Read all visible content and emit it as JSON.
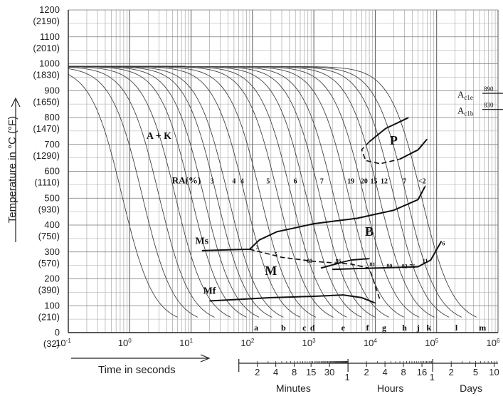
{
  "chart_data": {
    "type": "line",
    "title": "",
    "ylabel": "Temperature in °C (°F)",
    "xlabel": "Time in seconds",
    "x_scale": "log",
    "xlim": [
      0.1,
      1000000
    ],
    "ylim": [
      0,
      1200
    ],
    "grid": true,
    "y_ticks": [
      {
        "c": "0",
        "f": "(32)"
      },
      {
        "c": "100",
        "f": "(210)"
      },
      {
        "c": "200",
        "f": "(390)"
      },
      {
        "c": "300",
        "f": "(570)"
      },
      {
        "c": "400",
        "f": "(750)"
      },
      {
        "c": "500",
        "f": "(930)"
      },
      {
        "c": "600",
        "f": "(1110)"
      },
      {
        "c": "700",
        "f": "(1290)"
      },
      {
        "c": "800",
        "f": "(1470)"
      },
      {
        "c": "900",
        "f": "(1650)"
      },
      {
        "c": "1000",
        "f": "(1830)"
      },
      {
        "c": "1100",
        "f": "(2010)"
      },
      {
        "c": "1200",
        "f": "(2190)"
      }
    ],
    "x_ticks": [
      {
        "base": "10",
        "exp": "-1",
        "value": 0.1
      },
      {
        "base": "10",
        "exp": "0",
        "value": 1
      },
      {
        "base": "10",
        "exp": "1",
        "value": 10
      },
      {
        "base": "10",
        "exp": "2",
        "value": 100
      },
      {
        "base": "10",
        "exp": "3",
        "value": 1000
      },
      {
        "base": "10",
        "exp": "4",
        "value": 10000
      },
      {
        "base": "10",
        "exp": "5",
        "value": 100000
      },
      {
        "base": "10",
        "exp": "6",
        "value": 1000000
      }
    ],
    "time_scales": [
      {
        "name": "Minutes",
        "unit_seconds": 60,
        "range": [
          1,
          60
        ],
        "ticks": [
          {
            "label": "2",
            "value": 2
          },
          {
            "label": "4",
            "value": 4
          },
          {
            "label": "8",
            "value": 8
          },
          {
            "label": "15",
            "value": 15
          },
          {
            "label": "30",
            "value": 30
          }
        ],
        "start_label": ""
      },
      {
        "name": "Hours",
        "unit_seconds": 3600,
        "range": [
          1,
          24
        ],
        "ticks": [
          {
            "label": "2",
            "value": 2
          },
          {
            "label": "4",
            "value": 4
          },
          {
            "label": "8",
            "value": 8
          },
          {
            "label": "16",
            "value": 16
          }
        ],
        "start_label": "1"
      },
      {
        "name": "Days",
        "unit_seconds": 86400,
        "range": [
          1,
          11.57
        ],
        "ticks": [
          {
            "label": "2",
            "value": 2
          },
          {
            "label": "5",
            "value": 5
          },
          {
            "label": "10",
            "value": 10
          }
        ],
        "start_label": "1"
      }
    ],
    "reference_lines": [
      {
        "label": "A",
        "sub": "c1e",
        "value_label": "890",
        "y": 890,
        "x_start": 300000
      },
      {
        "label": "A",
        "sub": "c1b",
        "value_label": "830",
        "y": 830,
        "x_start": 300000
      }
    ],
    "region_labels": [
      {
        "text": "A + K",
        "x": 3,
        "y": 720
      },
      {
        "text": "P",
        "x": 20000,
        "y": 700
      },
      {
        "text": "B",
        "x": 8000,
        "y": 360
      },
      {
        "text": "M",
        "x": 200,
        "y": 215
      },
      {
        "text": "Ms",
        "x": 15,
        "y": 330
      },
      {
        "text": "Mf",
        "x": 20,
        "y": 145
      }
    ],
    "ra_label": "RA(%)",
    "ra_values": [
      {
        "text": "3",
        "x": 22,
        "y": 565
      },
      {
        "text": "4",
        "x": 50,
        "y": 565
      },
      {
        "text": "4",
        "x": 68,
        "y": 565
      },
      {
        "text": "5",
        "x": 180,
        "y": 565
      },
      {
        "text": "6",
        "x": 500,
        "y": 565
      },
      {
        "text": "7",
        "x": 1350,
        "y": 565
      },
      {
        "text": "19",
        "x": 4000,
        "y": 565
      },
      {
        "text": "20",
        "x": 6600,
        "y": 565
      },
      {
        "text": "15",
        "x": 9500,
        "y": 565
      },
      {
        "text": "12",
        "x": 14000,
        "y": 565
      },
      {
        "text": "7",
        "x": 30000,
        "y": 565
      },
      {
        "text": "<2",
        "x": 58000,
        "y": 565
      }
    ],
    "hardness_values": [
      {
        "text": "3",
        "x": 120,
        "y": 320
      },
      {
        "text": "5",
        "x": 240,
        "y": 295
      },
      {
        "text": "60",
        "x": 850,
        "y": 270
      },
      {
        "text": "86",
        "x": 2500,
        "y": 270
      },
      {
        "text": "81",
        "x": 9000,
        "y": 257
      },
      {
        "text": "80",
        "x": 17000,
        "y": 252
      },
      {
        "text": "82",
        "x": 30000,
        "y": 250
      },
      {
        "text": "76",
        "x": 40000,
        "y": 250
      },
      {
        "text": "11",
        "x": 65000,
        "y": 270
      },
      {
        "text": "6",
        "x": 130000,
        "y": 335
      }
    ],
    "curve_labels": [
      {
        "text": "a",
        "x": 115
      },
      {
        "text": "b",
        "x": 320
      },
      {
        "text": "c",
        "x": 700
      },
      {
        "text": "d",
        "x": 950
      },
      {
        "text": "e",
        "x": 3000
      },
      {
        "text": "f",
        "x": 7500
      },
      {
        "text": "g",
        "x": 14000
      },
      {
        "text": "h",
        "x": 30000
      },
      {
        "text": "j",
        "x": 50000
      },
      {
        "text": "k",
        "x": 75000
      },
      {
        "text": "l",
        "x": 210000
      },
      {
        "text": "m",
        "x": 560000
      }
    ],
    "cooling_curves": [
      {
        "t50": 0.75
      },
      {
        "t50": 1.6
      },
      {
        "t50": 3.0
      },
      {
        "t50": 5.5
      },
      {
        "t50": 10
      },
      {
        "t50": 16
      },
      {
        "t50": 26
      },
      {
        "t50": 40
      },
      {
        "t50": 75
      },
      {
        "t50": 135
      },
      {
        "t50": 260
      },
      {
        "t50": 430
      },
      {
        "t50": 750
      },
      {
        "t50": 1250
      },
      {
        "t50": 2100
      },
      {
        "t50": 3700
      },
      {
        "t50": 6500
      },
      {
        "t50": 11500
      },
      {
        "t50": 20000
      },
      {
        "t50": 32000
      },
      {
        "t50": 56000
      }
    ],
    "series": [
      {
        "name": "",
        "kind": "ms",
        "points": [
          [
            15,
            305
          ],
          [
            90,
            310
          ],
          [
            130,
            345
          ],
          [
            250,
            375
          ],
          [
            1000,
            405
          ],
          [
            5000,
            425
          ],
          [
            20000,
            455
          ],
          [
            50000,
            495
          ],
          [
            65000,
            545
          ]
        ]
      },
      {
        "name": "",
        "kind": "mf",
        "points": [
          [
            20,
            118
          ],
          [
            200,
            130
          ],
          [
            1000,
            135
          ],
          [
            3000,
            140
          ],
          [
            6000,
            130
          ],
          [
            10000,
            110
          ]
        ]
      },
      {
        "name": "",
        "kind": "b_finish",
        "points": [
          [
            2000,
            235
          ],
          [
            10000,
            240
          ],
          [
            50000,
            245
          ],
          [
            80000,
            270
          ],
          [
            120000,
            340
          ]
        ]
      },
      {
        "name": "",
        "kind": "b_start",
        "points": [
          [
            1300,
            240
          ],
          [
            4000,
            270
          ],
          [
            8000,
            275
          ]
        ]
      },
      {
        "name": "",
        "kind": "m_dashed",
        "points": [
          [
            90,
            310
          ],
          [
            300,
            280
          ],
          [
            1000,
            265
          ],
          [
            4000,
            255
          ],
          [
            8000,
            240
          ],
          [
            12000,
            120
          ]
        ]
      },
      {
        "name": "",
        "kind": "p_start",
        "points": [
          [
            8000,
            710
          ],
          [
            6000,
            680
          ],
          [
            7000,
            640
          ],
          [
            12000,
            628
          ],
          [
            25000,
            645
          ]
        ]
      },
      {
        "name": "",
        "kind": "p_upper",
        "points": [
          [
            8000,
            710
          ],
          [
            15000,
            760
          ],
          [
            35000,
            800
          ]
        ]
      },
      {
        "name": "",
        "kind": "p_finish",
        "points": [
          [
            25000,
            645
          ],
          [
            50000,
            680
          ],
          [
            70000,
            720
          ]
        ]
      }
    ]
  }
}
